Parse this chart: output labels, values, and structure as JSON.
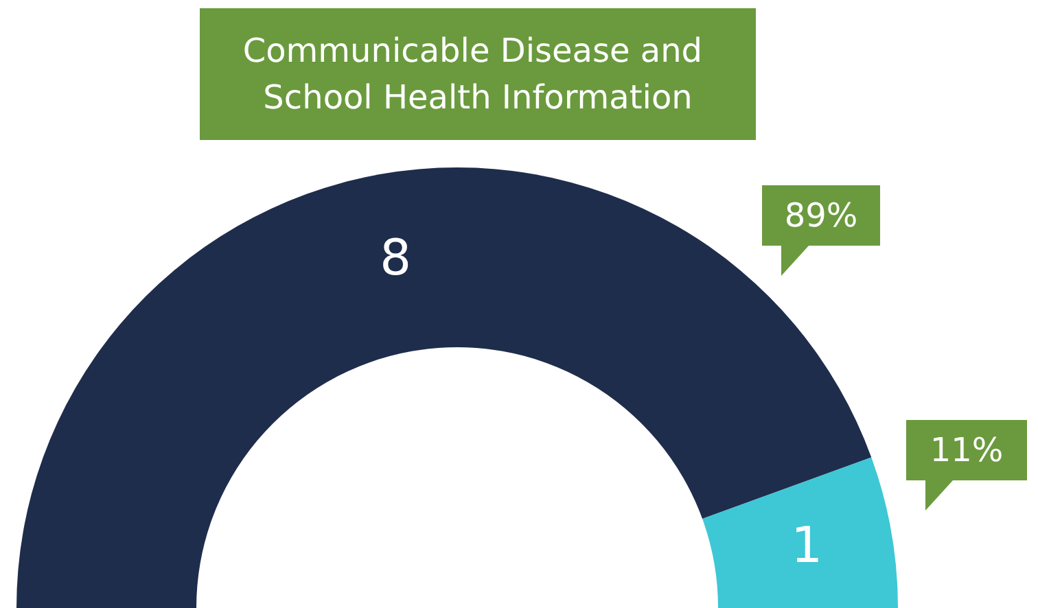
{
  "chart_data": {
    "type": "donut",
    "title": "Communicable Disease and School Health Information",
    "categories": [
      null,
      null
    ],
    "values": [
      8,
      1
    ],
    "colors": [
      "#1f2d4c",
      "#3ec7d5"
    ],
    "data_labels": true,
    "annotations": [
      "89%",
      "11%"
    ]
  }
}
